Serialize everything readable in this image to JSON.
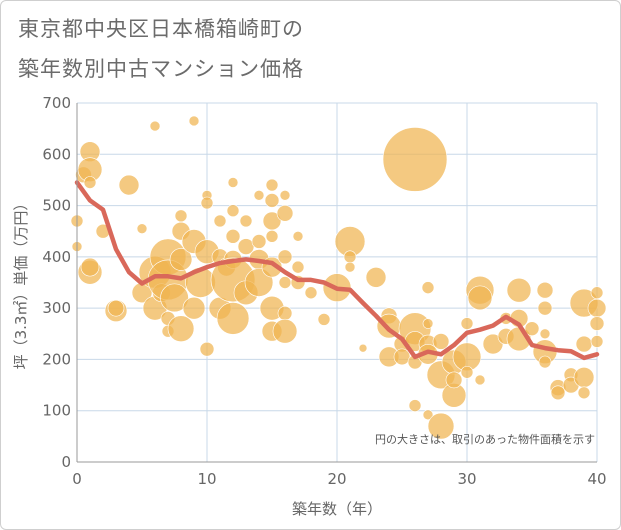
{
  "title_line1": "東京都中央区日本橋箱崎町の",
  "title_line2": "築年数別中古マンション価格",
  "chart_data": {
    "type": "scatter",
    "title": "東京都中央区日本橋箱崎町の築年数別中古マンション価格",
    "xlabel": "築年数（年）",
    "ylabel": "坪（3.3㎡）単価（万円）",
    "xlim": [
      0,
      40
    ],
    "ylim": [
      0,
      700
    ],
    "xticks": [
      0,
      10,
      20,
      30,
      40
    ],
    "yticks": [
      0,
      100,
      200,
      300,
      400,
      500,
      600,
      700
    ],
    "grid": true,
    "note": "円の大きさは、取引のあった物件面積を示す",
    "colors": {
      "bubble": "#f0b450",
      "line": "#d9685a",
      "grid": "#c8d8e8"
    },
    "line": {
      "x": [
        0,
        1,
        2,
        3,
        4,
        5,
        6,
        7,
        8,
        9,
        10,
        11,
        12,
        13,
        14,
        15,
        16,
        17,
        18,
        19,
        20,
        21,
        22,
        23,
        24,
        25,
        26,
        27,
        28,
        29,
        30,
        31,
        32,
        33,
        34,
        35,
        36,
        37,
        38,
        39,
        40
      ],
      "y": [
        545,
        510,
        492,
        415,
        370,
        348,
        362,
        362,
        358,
        370,
        380,
        388,
        392,
        395,
        392,
        388,
        370,
        355,
        355,
        350,
        338,
        336,
        310,
        285,
        258,
        240,
        205,
        215,
        210,
        228,
        252,
        258,
        266,
        283,
        268,
        228,
        222,
        218,
        216,
        203,
        210
      ]
    },
    "points": [
      {
        "x": 0,
        "y": 420,
        "s": 5
      },
      {
        "x": 0,
        "y": 470,
        "s": 6
      },
      {
        "x": 0.5,
        "y": 560,
        "s": 8
      },
      {
        "x": 1,
        "y": 605,
        "s": 10
      },
      {
        "x": 1,
        "y": 570,
        "s": 12
      },
      {
        "x": 1,
        "y": 545,
        "s": 6
      },
      {
        "x": 1,
        "y": 370,
        "s": 12
      },
      {
        "x": 1,
        "y": 380,
        "s": 9
      },
      {
        "x": 2,
        "y": 450,
        "s": 7
      },
      {
        "x": 3,
        "y": 295,
        "s": 11
      },
      {
        "x": 3,
        "y": 300,
        "s": 8
      },
      {
        "x": 4,
        "y": 540,
        "s": 10
      },
      {
        "x": 5,
        "y": 455,
        "s": 5
      },
      {
        "x": 5,
        "y": 330,
        "s": 10
      },
      {
        "x": 6,
        "y": 655,
        "s": 5
      },
      {
        "x": 6,
        "y": 300,
        "s": 12
      },
      {
        "x": 6,
        "y": 370,
        "s": 16
      },
      {
        "x": 6.5,
        "y": 330,
        "s": 9
      },
      {
        "x": 7,
        "y": 400,
        "s": 18
      },
      {
        "x": 7,
        "y": 355,
        "s": 20
      },
      {
        "x": 7,
        "y": 280,
        "s": 7
      },
      {
        "x": 7,
        "y": 255,
        "s": 6
      },
      {
        "x": 7.5,
        "y": 320,
        "s": 14
      },
      {
        "x": 8,
        "y": 480,
        "s": 6
      },
      {
        "x": 8,
        "y": 450,
        "s": 9
      },
      {
        "x": 8,
        "y": 395,
        "s": 11
      },
      {
        "x": 8,
        "y": 260,
        "s": 13
      },
      {
        "x": 9,
        "y": 665,
        "s": 5
      },
      {
        "x": 9,
        "y": 430,
        "s": 12
      },
      {
        "x": 9,
        "y": 300,
        "s": 11
      },
      {
        "x": 9.5,
        "y": 350,
        "s": 15
      },
      {
        "x": 10,
        "y": 520,
        "s": 5
      },
      {
        "x": 10,
        "y": 505,
        "s": 6
      },
      {
        "x": 10,
        "y": 410,
        "s": 12
      },
      {
        "x": 10,
        "y": 220,
        "s": 7
      },
      {
        "x": 11,
        "y": 470,
        "s": 6
      },
      {
        "x": 11,
        "y": 400,
        "s": 8
      },
      {
        "x": 11,
        "y": 300,
        "s": 11
      },
      {
        "x": 11.5,
        "y": 380,
        "s": 9
      },
      {
        "x": 12,
        "y": 545,
        "s": 5
      },
      {
        "x": 12,
        "y": 490,
        "s": 6
      },
      {
        "x": 12,
        "y": 440,
        "s": 7
      },
      {
        "x": 12,
        "y": 395,
        "s": 9
      },
      {
        "x": 12,
        "y": 355,
        "s": 22
      },
      {
        "x": 12,
        "y": 280,
        "s": 16
      },
      {
        "x": 13,
        "y": 470,
        "s": 6
      },
      {
        "x": 13,
        "y": 420,
        "s": 8
      },
      {
        "x": 13,
        "y": 330,
        "s": 12
      },
      {
        "x": 14,
        "y": 520,
        "s": 5
      },
      {
        "x": 14,
        "y": 430,
        "s": 7
      },
      {
        "x": 14,
        "y": 395,
        "s": 10
      },
      {
        "x": 14,
        "y": 350,
        "s": 14
      },
      {
        "x": 15,
        "y": 540,
        "s": 6
      },
      {
        "x": 15,
        "y": 510,
        "s": 7
      },
      {
        "x": 15,
        "y": 470,
        "s": 9
      },
      {
        "x": 15,
        "y": 440,
        "s": 6
      },
      {
        "x": 15,
        "y": 380,
        "s": 10
      },
      {
        "x": 15,
        "y": 300,
        "s": 12
      },
      {
        "x": 15,
        "y": 255,
        "s": 10
      },
      {
        "x": 16,
        "y": 520,
        "s": 5
      },
      {
        "x": 16,
        "y": 485,
        "s": 8
      },
      {
        "x": 16,
        "y": 400,
        "s": 7
      },
      {
        "x": 16,
        "y": 350,
        "s": 6
      },
      {
        "x": 16,
        "y": 290,
        "s": 7
      },
      {
        "x": 16,
        "y": 255,
        "s": 12
      },
      {
        "x": 17,
        "y": 440,
        "s": 5
      },
      {
        "x": 17,
        "y": 380,
        "s": 6
      },
      {
        "x": 17,
        "y": 350,
        "s": 7
      },
      {
        "x": 18,
        "y": 330,
        "s": 6
      },
      {
        "x": 19,
        "y": 278,
        "s": 6
      },
      {
        "x": 20,
        "y": 340,
        "s": 14
      },
      {
        "x": 21,
        "y": 430,
        "s": 15
      },
      {
        "x": 21,
        "y": 400,
        "s": 6
      },
      {
        "x": 21,
        "y": 380,
        "s": 5
      },
      {
        "x": 22,
        "y": 222,
        "s": 4
      },
      {
        "x": 23,
        "y": 360,
        "s": 10
      },
      {
        "x": 24,
        "y": 285,
        "s": 8
      },
      {
        "x": 24,
        "y": 265,
        "s": 12
      },
      {
        "x": 24,
        "y": 205,
        "s": 10
      },
      {
        "x": 25,
        "y": 230,
        "s": 8
      },
      {
        "x": 25,
        "y": 205,
        "s": 8
      },
      {
        "x": 26,
        "y": 590,
        "s": 32
      },
      {
        "x": 26,
        "y": 260,
        "s": 16
      },
      {
        "x": 26,
        "y": 235,
        "s": 10
      },
      {
        "x": 26,
        "y": 195,
        "s": 7
      },
      {
        "x": 26,
        "y": 110,
        "s": 6
      },
      {
        "x": 27,
        "y": 340,
        "s": 6
      },
      {
        "x": 27,
        "y": 270,
        "s": 5
      },
      {
        "x": 27,
        "y": 230,
        "s": 9
      },
      {
        "x": 27,
        "y": 210,
        "s": 10
      },
      {
        "x": 27,
        "y": 92,
        "s": 5
      },
      {
        "x": 28,
        "y": 235,
        "s": 8
      },
      {
        "x": 28,
        "y": 170,
        "s": 14
      },
      {
        "x": 28,
        "y": 70,
        "s": 13
      },
      {
        "x": 29,
        "y": 195,
        "s": 12
      },
      {
        "x": 29,
        "y": 130,
        "s": 12
      },
      {
        "x": 29,
        "y": 160,
        "s": 8
      },
      {
        "x": 30,
        "y": 270,
        "s": 6
      },
      {
        "x": 30,
        "y": 205,
        "s": 14
      },
      {
        "x": 30,
        "y": 175,
        "s": 6
      },
      {
        "x": 31,
        "y": 335,
        "s": 14
      },
      {
        "x": 31,
        "y": 320,
        "s": 12
      },
      {
        "x": 31,
        "y": 160,
        "s": 5
      },
      {
        "x": 32,
        "y": 230,
        "s": 10
      },
      {
        "x": 33,
        "y": 280,
        "s": 6
      },
      {
        "x": 33,
        "y": 245,
        "s": 8
      },
      {
        "x": 34,
        "y": 335,
        "s": 12
      },
      {
        "x": 34,
        "y": 280,
        "s": 9
      },
      {
        "x": 34,
        "y": 240,
        "s": 12
      },
      {
        "x": 35,
        "y": 260,
        "s": 7
      },
      {
        "x": 36,
        "y": 335,
        "s": 8
      },
      {
        "x": 36,
        "y": 300,
        "s": 7
      },
      {
        "x": 36,
        "y": 250,
        "s": 5
      },
      {
        "x": 36,
        "y": 215,
        "s": 12
      },
      {
        "x": 36,
        "y": 195,
        "s": 6
      },
      {
        "x": 37,
        "y": 145,
        "s": 8
      },
      {
        "x": 37,
        "y": 135,
        "s": 7
      },
      {
        "x": 38,
        "y": 170,
        "s": 7
      },
      {
        "x": 38,
        "y": 150,
        "s": 8
      },
      {
        "x": 39,
        "y": 310,
        "s": 14
      },
      {
        "x": 39,
        "y": 230,
        "s": 8
      },
      {
        "x": 39,
        "y": 165,
        "s": 10
      },
      {
        "x": 39,
        "y": 135,
        "s": 6
      },
      {
        "x": 40,
        "y": 330,
        "s": 6
      },
      {
        "x": 40,
        "y": 300,
        "s": 9
      },
      {
        "x": 40,
        "y": 270,
        "s": 7
      },
      {
        "x": 40,
        "y": 235,
        "s": 6
      }
    ]
  }
}
